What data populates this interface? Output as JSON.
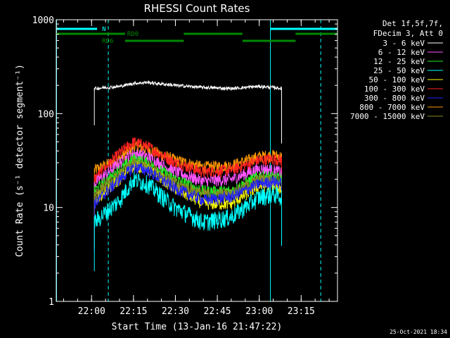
{
  "chart_data": {
    "type": "line",
    "title": "RHESSI Count Rates",
    "xlabel": "Start Time (13-Jan-16 21:47:22)",
    "ylabel": "Count Rate (s⁻¹ detector segment⁻¹)",
    "yscale": "log",
    "ylim": [
      1,
      1000
    ],
    "xlim": [
      "21:47:22",
      "23:28:00"
    ],
    "x_ticks": [
      "22:00",
      "22:15",
      "22:30",
      "22:45",
      "23:00",
      "23:15"
    ],
    "y_ticks": [
      "1",
      "10",
      "100",
      "1000"
    ],
    "grid": false,
    "legend_position": "top-right",
    "legend_header": [
      "Det 1f,5f,7f,",
      "FDecim 3, Att 0"
    ],
    "timestamp": "25-Oct-2021 18:34",
    "series": [
      {
        "name": "3 - 6 keV",
        "color": "#ffffff",
        "x": [
          "22:01",
          "22:10",
          "22:15",
          "22:20",
          "22:30",
          "22:40",
          "22:50",
          "23:00",
          "23:05",
          "23:08"
        ],
        "values": [
          185,
          195,
          210,
          215,
          200,
          190,
          185,
          195,
          190,
          185
        ]
      },
      {
        "name": "6 - 12 keV",
        "color": "#ff55ff",
        "x": [
          "22:01",
          "22:10",
          "22:15",
          "22:20",
          "22:30",
          "22:40",
          "22:50",
          "23:00",
          "23:05",
          "23:08"
        ],
        "values": [
          18,
          30,
          38,
          35,
          24,
          19,
          20,
          26,
          25,
          24
        ]
      },
      {
        "name": "12 - 25 keV",
        "color": "#22ee22",
        "x": [
          "22:01",
          "22:10",
          "22:15",
          "22:20",
          "22:30",
          "22:40",
          "22:50",
          "23:00",
          "23:05",
          "23:08"
        ],
        "values": [
          15,
          25,
          33,
          30,
          20,
          15,
          15,
          22,
          21,
          20
        ]
      },
      {
        "name": "25 - 50 keV",
        "color": "#00ffff",
        "x": [
          "22:01",
          "22:10",
          "22:15",
          "22:20",
          "22:30",
          "22:40",
          "22:50",
          "23:00",
          "23:05",
          "23:08"
        ],
        "values": [
          7,
          12,
          20,
          18,
          10,
          7,
          8,
          13,
          14,
          13
        ]
      },
      {
        "name": "50 - 100 keV",
        "color": "#ffff00",
        "x": [
          "22:01",
          "22:10",
          "22:15",
          "22:20",
          "22:30",
          "22:40",
          "22:50",
          "23:00",
          "23:05",
          "23:08"
        ],
        "values": [
          12,
          20,
          28,
          26,
          16,
          11,
          11,
          17,
          17,
          16
        ]
      },
      {
        "name": "100 - 300 keV",
        "color": "#ff2222",
        "x": [
          "22:01",
          "22:10",
          "22:15",
          "22:20",
          "22:30",
          "22:40",
          "22:50",
          "23:00",
          "23:05",
          "23:08"
        ],
        "values": [
          20,
          38,
          50,
          45,
          30,
          24,
          25,
          32,
          33,
          32
        ]
      },
      {
        "name": "300 - 800 keV",
        "color": "#2222ff",
        "x": [
          "22:01",
          "22:10",
          "22:15",
          "22:20",
          "22:30",
          "22:40",
          "22:50",
          "23:00",
          "23:05",
          "23:08"
        ],
        "values": [
          11,
          20,
          27,
          25,
          16,
          12,
          13,
          18,
          19,
          18
        ]
      },
      {
        "name": "800 - 7000 keV",
        "color": "#ff9900",
        "x": [
          "22:01",
          "22:10",
          "22:15",
          "22:20",
          "22:30",
          "22:40",
          "22:50",
          "23:00",
          "23:05",
          "23:08"
        ],
        "values": [
          25,
          33,
          45,
          42,
          32,
          27,
          28,
          35,
          36,
          35
        ]
      },
      {
        "name": "7000 - 15000 keV",
        "color": "#8a8a22",
        "x": [
          "22:01",
          "22:10",
          "22:15",
          "22:20",
          "22:30",
          "22:40",
          "22:50",
          "23:00",
          "23:05",
          "23:08"
        ],
        "values": [
          14,
          22,
          30,
          28,
          18,
          14,
          14,
          20,
          20,
          19
        ]
      }
    ],
    "flag_bars": [
      {
        "label": "N",
        "color": "#00ffff",
        "segments": [
          [
            "21:47:22",
            "22:02:00"
          ],
          [
            "23:04:00",
            "23:28:00"
          ]
        ]
      },
      {
        "label": "RD0",
        "color": "#008800",
        "segments": [
          [
            "21:47:22",
            "22:12:00"
          ],
          [
            "22:33:00",
            "22:54:00"
          ],
          [
            "23:13:00",
            "23:28:00"
          ]
        ]
      },
      {
        "label": "RD6",
        "color": "#008800",
        "segments": [
          [
            "22:12:00",
            "22:33:00"
          ],
          [
            "22:54:00",
            "23:13:00"
          ]
        ]
      }
    ],
    "vlines": [
      {
        "x": "21:47:22",
        "style": "solid",
        "color": "#00ffff"
      },
      {
        "x": "22:06:00",
        "style": "dashed",
        "color": "#00ffff"
      },
      {
        "x": "23:04:00",
        "style": "solid",
        "color": "#00ffff"
      },
      {
        "x": "23:22:00",
        "style": "dashed",
        "color": "#00ffff"
      }
    ]
  }
}
